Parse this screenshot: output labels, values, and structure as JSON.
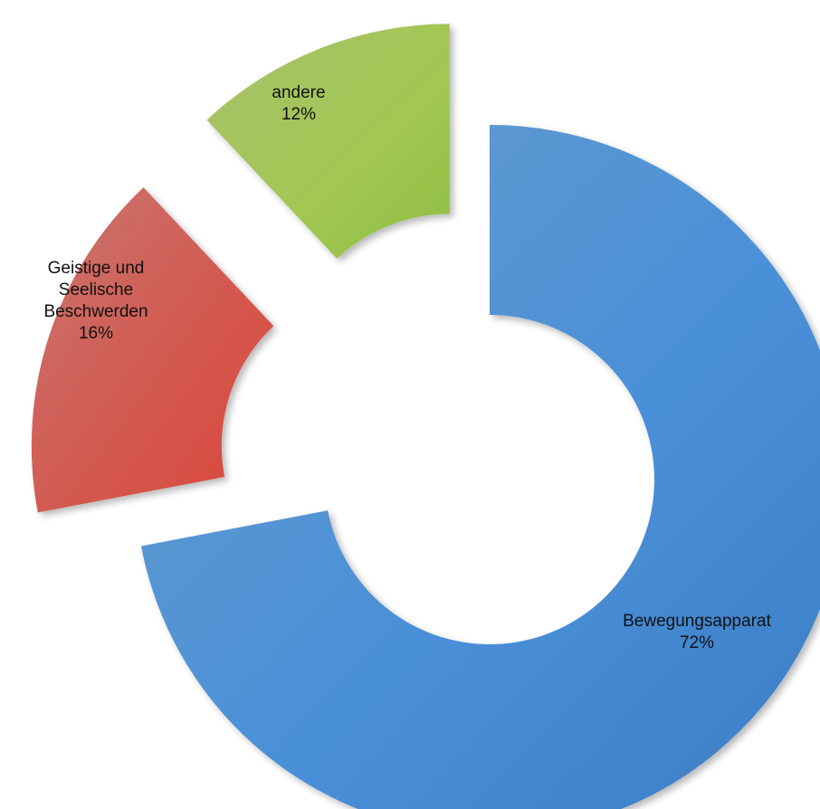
{
  "chart_data": {
    "type": "donut",
    "title": "",
    "exploded": true,
    "series": [
      {
        "values": [
          72,
          16,
          12
        ]
      }
    ],
    "categories": [
      "Bewegungsapparat",
      "Geistige und Seelische Beschwerden",
      "andere"
    ],
    "slices": [
      {
        "label_lines": [
          "Bewegungsapparat"
        ],
        "percent_label": "72%",
        "value": 72,
        "color": "#4A8FD2"
      },
      {
        "label_lines": [
          "Geistige und",
          "Seelische",
          "Beschwerden"
        ],
        "percent_label": "16%",
        "value": 16,
        "color": "#D25A50"
      },
      {
        "label_lines": [
          "andere"
        ],
        "percent_label": "12%",
        "value": 12,
        "color": "#9CC45A"
      }
    ]
  }
}
